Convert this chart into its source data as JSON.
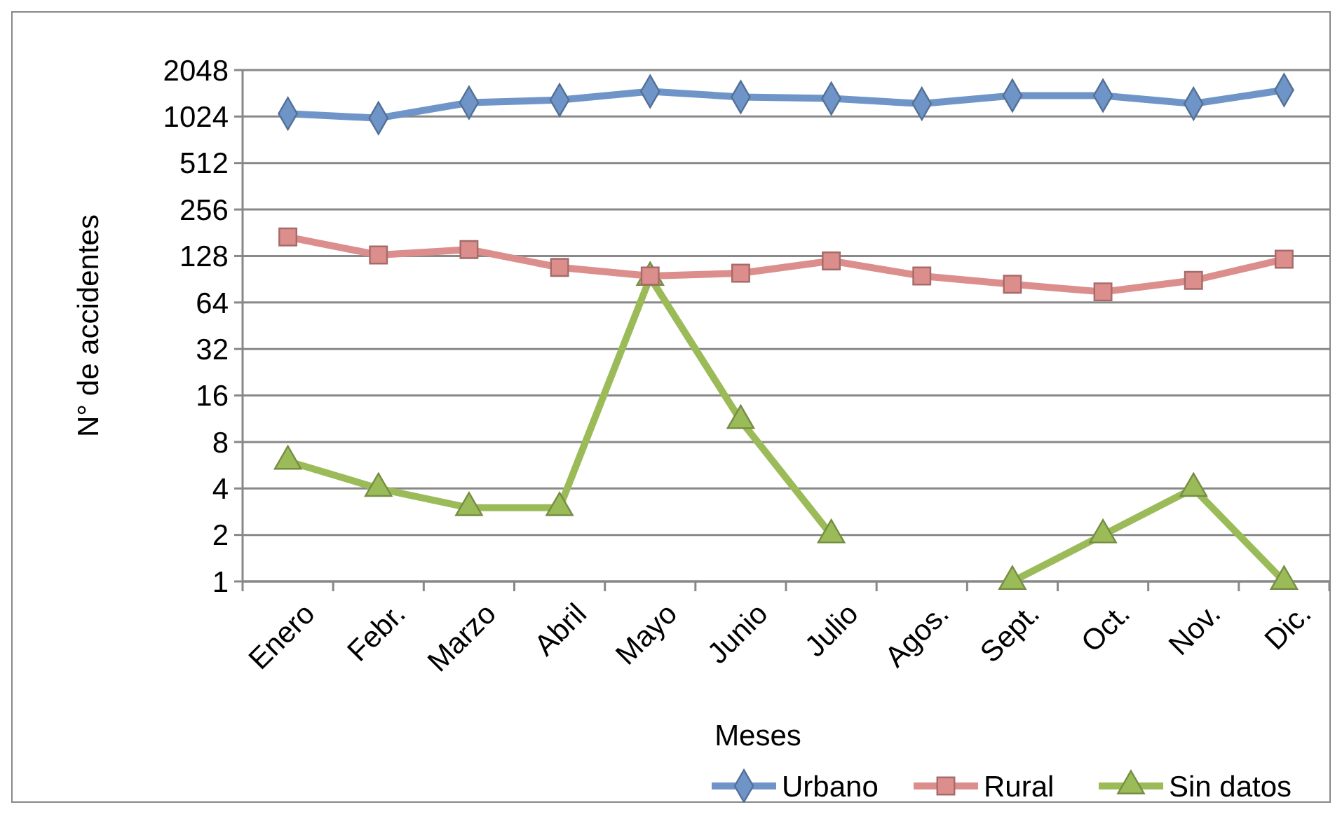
{
  "chart_data": {
    "type": "line",
    "xlabel": "Meses",
    "ylabel": "N° de accidentes",
    "log": true,
    "grid": "y",
    "legend": "bottom",
    "categories": [
      "Enero",
      "Febr.",
      "Marzo",
      "Abril",
      "Mayo",
      "Junio",
      "Julio",
      "Agos.",
      "Sept.",
      "Oct.",
      "Nov.",
      "Dic."
    ],
    "ylim": [
      1,
      2048
    ],
    "yticks": [
      1,
      2,
      4,
      8,
      16,
      32,
      64,
      128,
      256,
      512,
      1024,
      2048
    ],
    "series": [
      {
        "name": "Urbano",
        "color": "#6f95c8",
        "marker": "diamond",
        "values": [
          1070,
          1000,
          1260,
          1310,
          1490,
          1370,
          1340,
          1240,
          1400,
          1400,
          1240,
          1520
        ]
      },
      {
        "name": "Rural",
        "color": "#dc8e8c",
        "marker": "square",
        "values": [
          170,
          130,
          141,
          108,
          95,
          99,
          119,
          95,
          84,
          75,
          89,
          122
        ]
      },
      {
        "name": "Sin datos",
        "color": "#9bbb59",
        "marker": "triangle",
        "values": [
          6,
          4,
          3,
          3,
          93,
          11,
          2,
          null,
          1,
          2,
          4,
          1
        ]
      }
    ]
  }
}
